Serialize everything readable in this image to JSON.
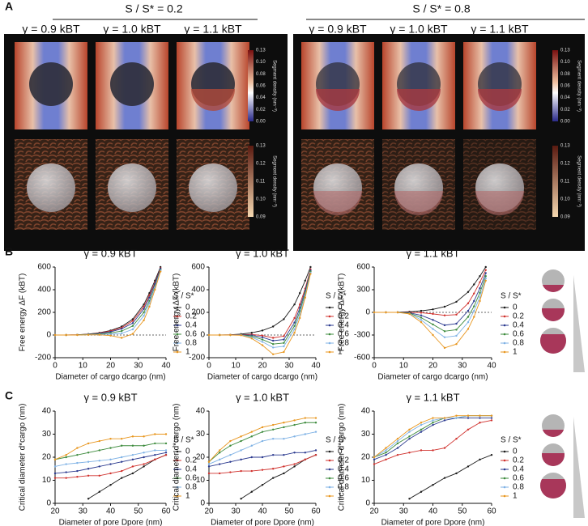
{
  "panel_a": {
    "label": "A",
    "groups": [
      {
        "title": "S / S* = 0.2",
        "columns": [
          "γ = 0.9 kBT",
          "γ = 1.0 kBT",
          "γ = 1.1 kBT"
        ]
      },
      {
        "title": "S / S* = 0.8",
        "columns": [
          "γ = 0.9 kBT",
          "γ = 1.0 kBT",
          "γ = 1.1 kBT"
        ]
      }
    ],
    "colorbar_top_ticks": [
      "0.13",
      "0.10",
      "0.08",
      "0.06",
      "0.04",
      "0.02",
      "0.00"
    ],
    "colorbar_bottom_ticks": [
      "0.13",
      "0.12",
      "0.11",
      "0.10",
      "0.09"
    ],
    "colorbar_label": "Segment density (nm⁻³)"
  },
  "panel_b_label": "B",
  "panel_c_label": "C",
  "chart_data": [
    {
      "type": "line",
      "title": "γ = 0.9 kBT",
      "xlabel": "Diameter of cargo dcargo (nm)",
      "ylabel": "Free energy ΔF (kBT)",
      "legend_title": "S / S*",
      "legend": "outside-right",
      "zero_line": true,
      "x": [
        0,
        4,
        8,
        12,
        16,
        20,
        24,
        28,
        32,
        34,
        36,
        38
      ],
      "xlim": [
        0,
        40
      ],
      "xticks": [
        0,
        10,
        20,
        30,
        40
      ],
      "ylim": [
        -200,
        600
      ],
      "yticks": [
        -200,
        0,
        200,
        400,
        600
      ],
      "series": [
        {
          "name": "0",
          "color": "#1a1a1a",
          "values": [
            0,
            0,
            2,
            8,
            20,
            40,
            75,
            140,
            270,
            370,
            480,
            600
          ]
        },
        {
          "name": "0.2",
          "color": "#d0312d",
          "values": [
            0,
            0,
            2,
            7,
            18,
            35,
            65,
            125,
            250,
            350,
            460,
            590
          ]
        },
        {
          "name": "0.4",
          "color": "#2b3a8f",
          "values": [
            0,
            0,
            1,
            6,
            15,
            28,
            55,
            105,
            230,
            330,
            450,
            585
          ]
        },
        {
          "name": "0.6",
          "color": "#3d8b3d",
          "values": [
            0,
            0,
            1,
            5,
            10,
            18,
            35,
            80,
            200,
            300,
            430,
            575
          ]
        },
        {
          "name": "0.8",
          "color": "#7fb2e5",
          "values": [
            0,
            0,
            0,
            3,
            6,
            8,
            15,
            50,
            170,
            280,
            420,
            570
          ]
        },
        {
          "name": "1",
          "color": "#e8961e",
          "values": [
            0,
            0,
            0,
            1,
            2,
            -5,
            -25,
            10,
            130,
            250,
            400,
            560
          ]
        }
      ]
    },
    {
      "type": "line",
      "title": "γ = 1.0 kBT",
      "xlabel": "Diameter of cargo dcargo (nm)",
      "ylabel": "Free energy ΔF (kBT)",
      "legend_title": "S / S*",
      "legend": "outside-right",
      "zero_line": true,
      "x": [
        0,
        4,
        8,
        12,
        16,
        20,
        24,
        28,
        32,
        34,
        36,
        38
      ],
      "xlim": [
        0,
        40
      ],
      "xticks": [
        0,
        10,
        20,
        30,
        40
      ],
      "ylim": [
        -200,
        600
      ],
      "yticks": [
        -200,
        0,
        200,
        400,
        600
      ],
      "series": [
        {
          "name": "0",
          "color": "#1a1a1a",
          "values": [
            0,
            0,
            2,
            8,
            20,
            40,
            75,
            140,
            270,
            370,
            480,
            600
          ]
        },
        {
          "name": "0.2",
          "color": "#d0312d",
          "values": [
            0,
            0,
            1,
            3,
            5,
            -5,
            -25,
            -10,
            150,
            270,
            410,
            580
          ]
        },
        {
          "name": "0.4",
          "color": "#2b3a8f",
          "values": [
            0,
            0,
            0,
            2,
            -2,
            -20,
            -50,
            -40,
            110,
            240,
            390,
            570
          ]
        },
        {
          "name": "0.6",
          "color": "#3d8b3d",
          "values": [
            0,
            0,
            0,
            1,
            -10,
            -40,
            -80,
            -70,
            80,
            210,
            370,
            560
          ]
        },
        {
          "name": "0.8",
          "color": "#7fb2e5",
          "values": [
            0,
            0,
            0,
            0,
            -20,
            -60,
            -110,
            -100,
            50,
            180,
            350,
            550
          ]
        },
        {
          "name": "1",
          "color": "#e8961e",
          "values": [
            0,
            0,
            0,
            -2,
            -30,
            -90,
            -170,
            -150,
            20,
            150,
            330,
            540
          ]
        }
      ]
    },
    {
      "type": "line",
      "title": "γ = 1.1 kBT",
      "xlabel": "Diameter of cargo dcargo (nm)",
      "ylabel": "Free energy ΔF (kBT)",
      "legend_title": "S / S*",
      "legend": "outside-right",
      "zero_line": true,
      "x": [
        0,
        4,
        8,
        12,
        16,
        20,
        24,
        28,
        32,
        34,
        36,
        38
      ],
      "xlim": [
        0,
        40
      ],
      "xticks": [
        0,
        10,
        20,
        30,
        40
      ],
      "ylim": [
        -600,
        600
      ],
      "yticks": [
        -600,
        -300,
        0,
        300,
        600
      ],
      "series": [
        {
          "name": "0",
          "color": "#1a1a1a",
          "values": [
            0,
            0,
            2,
            8,
            20,
            40,
            75,
            140,
            270,
            370,
            480,
            600
          ]
        },
        {
          "name": "0.2",
          "color": "#d0312d",
          "values": [
            0,
            0,
            0,
            0,
            -5,
            -20,
            -40,
            -30,
            120,
            250,
            400,
            560
          ]
        },
        {
          "name": "0.4",
          "color": "#2b3a8f",
          "values": [
            0,
            0,
            0,
            -5,
            -40,
            -100,
            -170,
            -150,
            20,
            150,
            320,
            520
          ]
        },
        {
          "name": "0.6",
          "color": "#3d8b3d",
          "values": [
            0,
            0,
            0,
            -10,
            -70,
            -160,
            -250,
            -230,
            -60,
            80,
            260,
            480
          ]
        },
        {
          "name": "0.8",
          "color": "#7fb2e5",
          "values": [
            0,
            0,
            0,
            -15,
            -100,
            -220,
            -330,
            -310,
            -130,
            20,
            200,
            450
          ]
        },
        {
          "name": "1",
          "color": "#e8961e",
          "values": [
            0,
            0,
            0,
            -20,
            -130,
            -300,
            -470,
            -420,
            -220,
            -60,
            150,
            420
          ]
        }
      ]
    },
    {
      "type": "line",
      "title": "γ = 0.9 kBT",
      "xlabel": "Diameter of pore Dpore (nm)",
      "ylabel": "Critical diameter d*cargo (nm)",
      "legend_title": "S / S*",
      "legend": "outside-right",
      "zero_line": false,
      "x": [
        20,
        24,
        28,
        32,
        36,
        40,
        44,
        48,
        52,
        56,
        60
      ],
      "xlim": [
        20,
        60
      ],
      "xticks": [
        20,
        30,
        40,
        50,
        60
      ],
      "ylim": [
        0,
        40
      ],
      "yticks": [
        0,
        10,
        20,
        30,
        40
      ],
      "series": [
        {
          "name": "0",
          "color": "#1a1a1a",
          "values": [
            null,
            null,
            null,
            2,
            5,
            8,
            11,
            13,
            16,
            19,
            21
          ]
        },
        {
          "name": "0.2",
          "color": "#d0312d",
          "values": [
            11,
            11,
            11.5,
            12,
            12,
            13,
            14,
            16,
            17,
            19,
            21
          ]
        },
        {
          "name": "0.4",
          "color": "#2b3a8f",
          "values": [
            13,
            13.5,
            14,
            15,
            16,
            17,
            18,
            19,
            20,
            21,
            22
          ]
        },
        {
          "name": "0.6",
          "color": "#3d8b3d",
          "values": [
            19,
            20,
            21,
            22,
            23,
            24,
            25,
            25,
            25,
            26,
            26
          ]
        },
        {
          "name": "0.8",
          "color": "#7fb2e5",
          "values": [
            16,
            17,
            17.5,
            18,
            18.5,
            19,
            20,
            21,
            22,
            23,
            23
          ]
        },
        {
          "name": "1",
          "color": "#e8961e",
          "values": [
            19,
            21,
            24,
            26,
            27,
            28,
            28,
            29,
            29,
            30,
            30
          ]
        }
      ]
    },
    {
      "type": "line",
      "title": "γ = 1.0 kBT",
      "xlabel": "Diameter of pore Dpore (nm)",
      "ylabel": "Critical diameter d*cargo (nm)",
      "legend_title": "S / S*",
      "legend": "outside-right",
      "zero_line": false,
      "x": [
        20,
        24,
        28,
        32,
        36,
        40,
        44,
        48,
        52,
        56,
        60
      ],
      "xlim": [
        20,
        60
      ],
      "xticks": [
        20,
        30,
        40,
        50,
        60
      ],
      "ylim": [
        0,
        40
      ],
      "yticks": [
        0,
        10,
        20,
        30,
        40
      ],
      "series": [
        {
          "name": "0",
          "color": "#1a1a1a",
          "values": [
            null,
            null,
            null,
            2,
            5,
            8,
            11,
            13,
            16,
            19,
            21
          ]
        },
        {
          "name": "0.2",
          "color": "#d0312d",
          "values": [
            13,
            13,
            13.5,
            14,
            14,
            14.5,
            15,
            16,
            17,
            19,
            21
          ]
        },
        {
          "name": "0.4",
          "color": "#2b3a8f",
          "values": [
            16,
            17,
            18,
            19,
            20,
            20,
            21,
            21,
            22,
            22,
            23
          ]
        },
        {
          "name": "0.6",
          "color": "#3d8b3d",
          "values": [
            18,
            22,
            25,
            27,
            29,
            31,
            32,
            33,
            34,
            35,
            35
          ]
        },
        {
          "name": "0.8",
          "color": "#7fb2e5",
          "values": [
            17,
            19,
            21,
            23,
            25,
            27,
            28,
            28,
            29,
            30,
            31
          ]
        },
        {
          "name": "1",
          "color": "#e8961e",
          "values": [
            18,
            23,
            27,
            29,
            31,
            33,
            34,
            35,
            36,
            37,
            37
          ]
        }
      ]
    },
    {
      "type": "line",
      "title": "γ = 1.1 kBT",
      "xlabel": "Diameter of pore Dpore (nm)",
      "ylabel": "Critical diameter d*cargo (nm)",
      "legend_title": "S / S*",
      "legend": "outside-right",
      "zero_line": false,
      "x": [
        20,
        24,
        28,
        32,
        36,
        40,
        44,
        48,
        52,
        56,
        60
      ],
      "xlim": [
        20,
        60
      ],
      "xticks": [
        20,
        30,
        40,
        50,
        60
      ],
      "ylim": [
        0,
        40
      ],
      "yticks": [
        0,
        10,
        20,
        30,
        40
      ],
      "series": [
        {
          "name": "0",
          "color": "#1a1a1a",
          "values": [
            null,
            null,
            null,
            2,
            5,
            8,
            11,
            13,
            16,
            19,
            21
          ]
        },
        {
          "name": "0.2",
          "color": "#d0312d",
          "values": [
            17,
            19,
            21,
            22,
            23,
            23,
            24,
            28,
            32,
            35,
            36
          ]
        },
        {
          "name": "0.4",
          "color": "#2b3a8f",
          "values": [
            19,
            21,
            24,
            28,
            31,
            34,
            36,
            37,
            37,
            37,
            37
          ]
        },
        {
          "name": "0.6",
          "color": "#3d8b3d",
          "values": [
            20,
            22,
            26,
            29,
            32,
            35,
            37,
            37,
            38,
            38,
            38
          ]
        },
        {
          "name": "0.8",
          "color": "#7fb2e5",
          "values": [
            20,
            23,
            27,
            31,
            34,
            36,
            37,
            37,
            38,
            38,
            38
          ]
        },
        {
          "name": "1",
          "color": "#e8961e",
          "values": [
            20,
            24,
            28,
            32,
            35,
            37,
            37,
            38,
            38,
            38,
            38
          ]
        }
      ]
    }
  ]
}
